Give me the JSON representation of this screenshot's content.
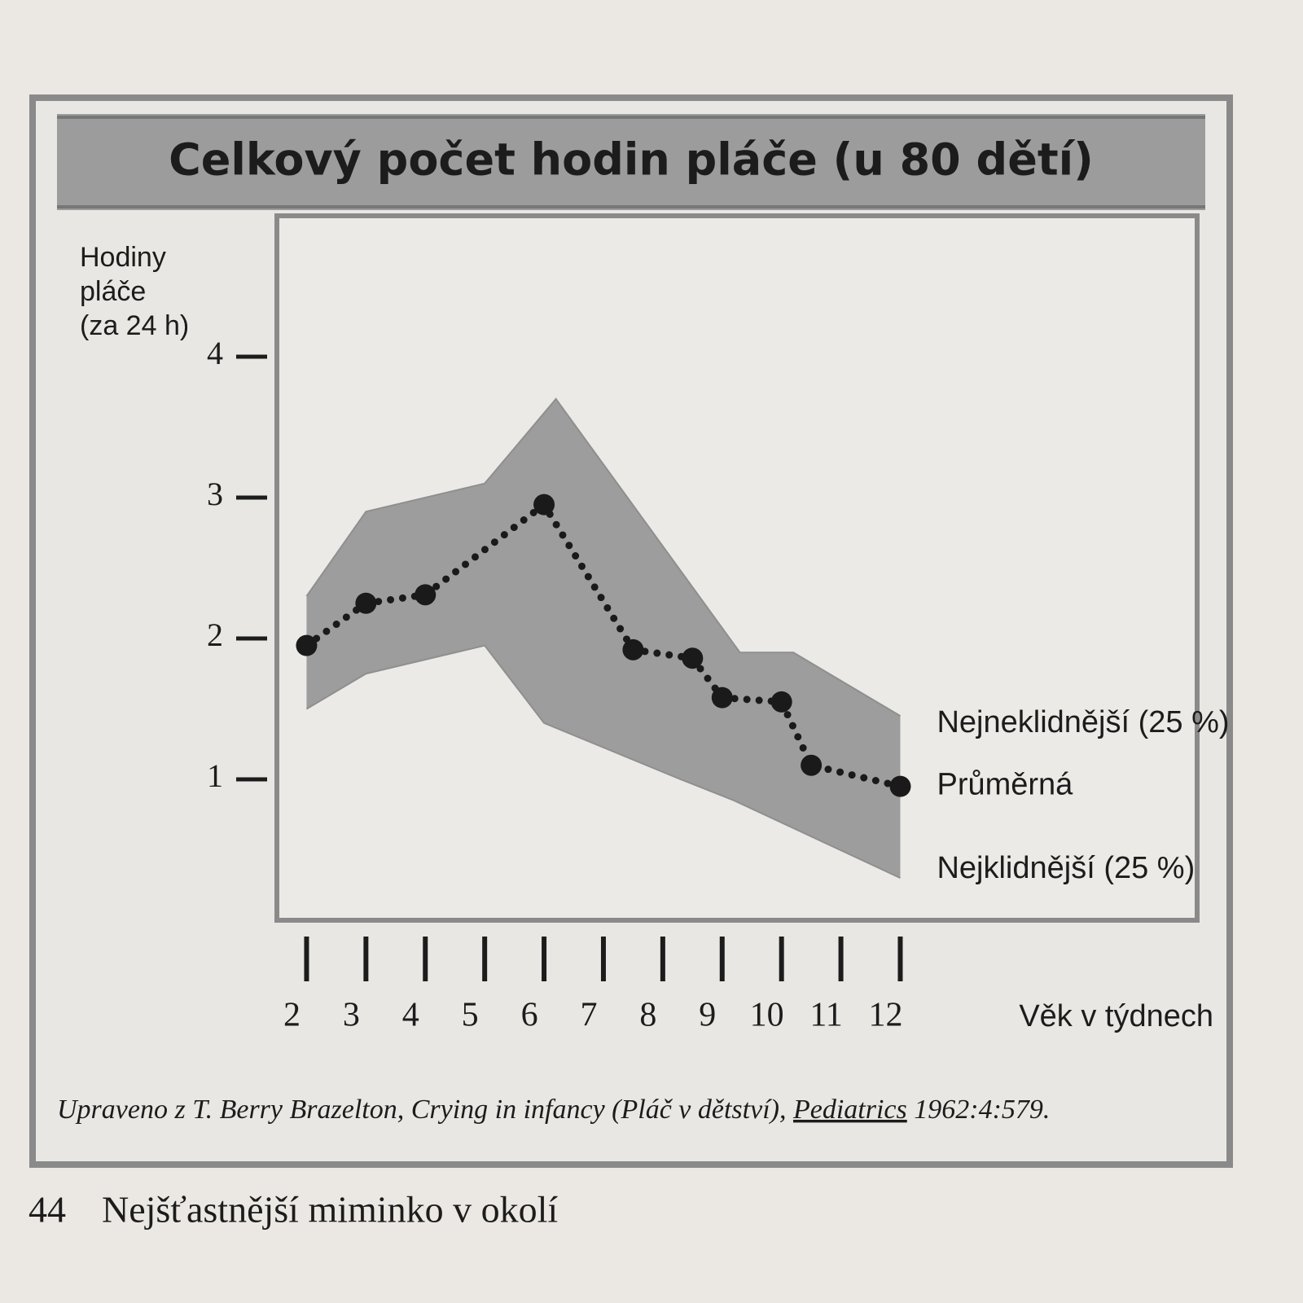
{
  "chart_data": {
    "type": "line",
    "title": "Celkový počet hodin pláče (u 80 dětí)",
    "y_label": [
      "Hodiny",
      "pláče",
      "(za 24 h)"
    ],
    "x_label": "Věk v týdnech",
    "xlim": [
      1.5,
      17
    ],
    "xticks": [
      2,
      3,
      4,
      5,
      6,
      7,
      8,
      9,
      10,
      11,
      12
    ],
    "ylim": [
      0,
      5
    ],
    "yticks": [
      1,
      2,
      3,
      4
    ],
    "fill_between": true,
    "series": [
      {
        "name": "Nejneklidnější (25 %)",
        "color": "#8f8f8f",
        "x": [
          2,
          3,
          5,
          6.2,
          9.3,
          10.2,
          12
        ],
        "values": [
          2.3,
          2.9,
          3.1,
          3.7,
          1.9,
          1.9,
          1.45
        ]
      },
      {
        "name": "Průměrná",
        "color": "#1a1a1a",
        "x": [
          2,
          3,
          4,
          6,
          7.5,
          8.5,
          9,
          10,
          10.5,
          12
        ],
        "values": [
          1.95,
          2.25,
          2.31,
          2.95,
          1.92,
          1.86,
          1.58,
          1.55,
          1.1,
          0.95
        ]
      },
      {
        "name": "Nejklidnější (25 %)",
        "color": "#8f8f8f",
        "x": [
          2,
          3,
          5,
          6,
          8.3,
          9.2,
          12
        ],
        "values": [
          1.5,
          1.75,
          1.95,
          1.4,
          1.0,
          0.85,
          0.3
        ]
      }
    ],
    "source": {
      "text": "Upraveno z T. Berry Brazelton, Crying in infancy (Pláč v dětství),",
      "journal": "Pediatrics",
      "citation": "1962:4:579."
    }
  },
  "page": {
    "number": "44",
    "title": "Nejšťastnější miminko v okolí"
  }
}
